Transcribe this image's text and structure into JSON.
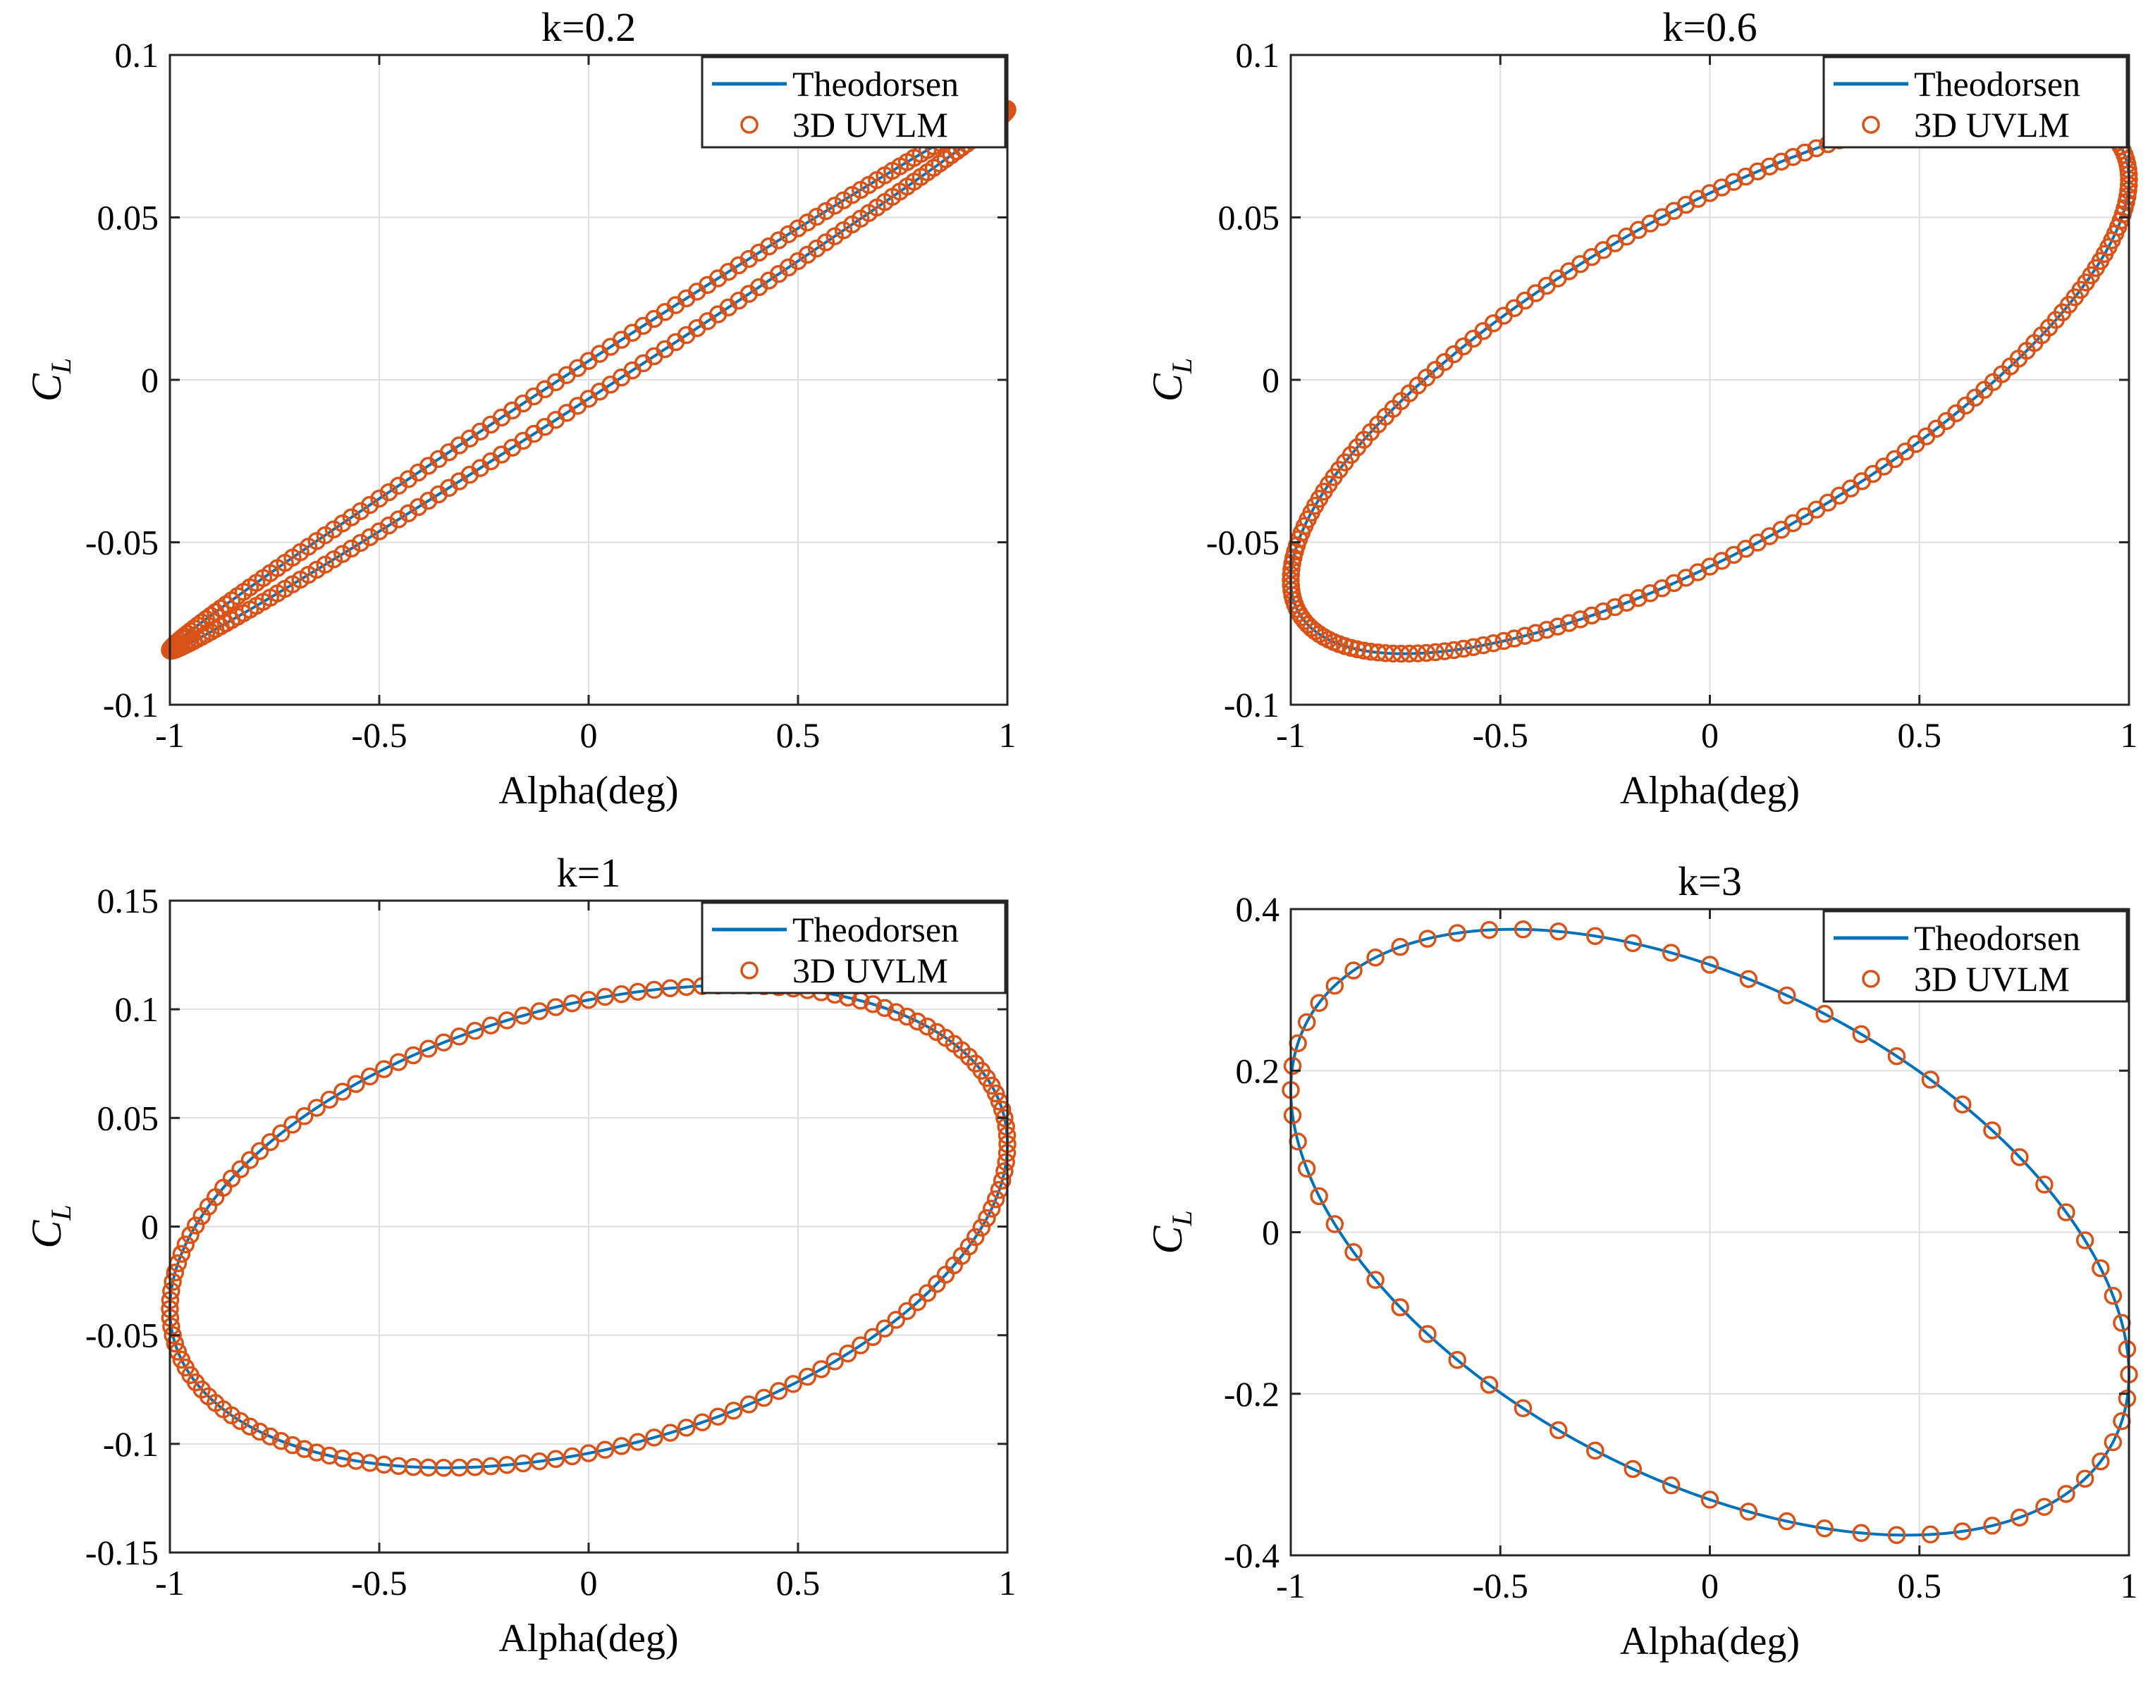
{
  "figure": {
    "background": "#ffffff",
    "grid_color": "#dedede",
    "axis_color": "#262626",
    "theodorsen_color": "#0072BD",
    "uvlm_color": "#D95319"
  },
  "chart_data": [
    {
      "type": "line",
      "title": "k=0.2",
      "xlabel": "Alpha(deg)",
      "ylabel_main": "C",
      "ylabel_sub": "L",
      "xlim": [
        -1,
        1
      ],
      "ylim": [
        -0.1,
        0.1
      ],
      "grid": true,
      "legend_position": "top-right",
      "xticks": [
        -1,
        -0.5,
        0,
        0.5,
        1
      ],
      "xtick_labels": [
        "-1",
        "-0.5",
        "0",
        "0.5",
        "1"
      ],
      "yticks": [
        -0.1,
        -0.05,
        0,
        0.05,
        0.1
      ],
      "ytick_labels": [
        "-0.1",
        "-0.05",
        "0",
        "0.05",
        "0.1"
      ],
      "curve": {
        "A": 0.0834,
        "phi_deg": 4,
        "amplitude_deg": 1
      },
      "series": [
        {
          "name": "Theodorsen",
          "style": "line",
          "samples": 400
        },
        {
          "name": "3D UVLM",
          "style": "circle-markers",
          "samples": 240
        }
      ]
    },
    {
      "type": "line",
      "title": "k=0.6",
      "xlabel": "Alpha(deg)",
      "ylabel_main": "C",
      "ylabel_sub": "L",
      "xlim": [
        -1,
        1
      ],
      "ylim": [
        -0.1,
        0.1
      ],
      "grid": true,
      "legend_position": "top-right",
      "xticks": [
        -1,
        -0.5,
        0,
        0.5,
        1
      ],
      "xtick_labels": [
        "-1",
        "-0.5",
        "0",
        "0.5",
        "1"
      ],
      "yticks": [
        -0.1,
        -0.05,
        0,
        0.05,
        0.1
      ],
      "ytick_labels": [
        "-0.1",
        "-0.05",
        "0",
        "0.05",
        "0.1"
      ],
      "curve": {
        "A": 0.0843,
        "phi_deg": 43,
        "amplitude_deg": 1
      },
      "series": [
        {
          "name": "Theodorsen",
          "style": "line",
          "samples": 400
        },
        {
          "name": "3D UVLM",
          "style": "circle-markers",
          "samples": 220
        }
      ]
    },
    {
      "type": "line",
      "title": "k=1",
      "xlabel": "Alpha(deg)",
      "ylabel_main": "C",
      "ylabel_sub": "L",
      "xlim": [
        -1,
        1
      ],
      "ylim": [
        -0.15,
        0.15
      ],
      "grid": true,
      "legend_position": "top-right",
      "xticks": [
        -1,
        -0.5,
        0,
        0.5,
        1
      ],
      "xtick_labels": [
        "-1",
        "-0.5",
        "0",
        "0.5",
        "1"
      ],
      "yticks": [
        -0.15,
        -0.1,
        -0.05,
        0,
        0.05,
        0.1,
        0.15
      ],
      "ytick_labels": [
        "-0.15",
        "-0.1",
        "-0.05",
        "0",
        "0.05",
        "0.1",
        "0.15"
      ],
      "curve": {
        "A": 0.111,
        "phi_deg": 70,
        "amplitude_deg": 1
      },
      "series": [
        {
          "name": "Theodorsen",
          "style": "line",
          "samples": 400
        },
        {
          "name": "3D UVLM",
          "style": "circle-markers",
          "samples": 160
        }
      ]
    },
    {
      "type": "line",
      "title": "k=3",
      "xlabel": "Alpha(deg)",
      "ylabel_main": "C",
      "ylabel_sub": "L",
      "xlim": [
        -1,
        1
      ],
      "ylim": [
        -0.4,
        0.4
      ],
      "grid": true,
      "legend_position": "top-right",
      "xticks": [
        -1,
        -0.5,
        0,
        0.5,
        1
      ],
      "xtick_labels": [
        "-1",
        "-0.5",
        "0",
        "0.5",
        "1"
      ],
      "yticks": [
        -0.4,
        -0.2,
        0,
        0.2,
        0.4
      ],
      "ytick_labels": [
        "-0.4",
        "-0.2",
        "0",
        "0.2",
        "0.4"
      ],
      "curve": {
        "A": 0.375,
        "phi_deg": 118,
        "amplitude_deg": 1
      },
      "series": [
        {
          "name": "Theodorsen",
          "style": "line",
          "samples": 400
        },
        {
          "name": "3D UVLM",
          "style": "circle-markers",
          "samples": 68
        }
      ]
    }
  ]
}
